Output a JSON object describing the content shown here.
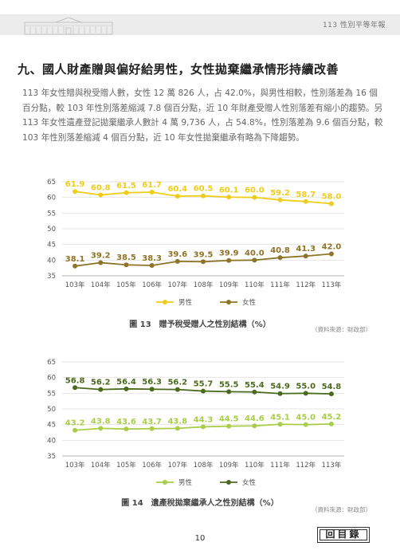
{
  "header": {
    "title": "113 性別平等年報"
  },
  "section": {
    "title": "九、國人財產贈與偏好給男性，女性拋棄繼承情形持續改善"
  },
  "paragraph": "113 年女性贈與稅受贈人數，女性 12 萬 826 人，占 42.0%，與男性相較，性別落差為 16 個百分點，較 103 年性別落差縮減 7.8 個百分點，近 10 年財產受贈人性別落差有縮小的趨勢。另 113 年女性遺產登記拋棄繼承人數計 4 萬 9,736 人，占 54.8%，性別落差為 9.6 個百分點，較 103 年性別落差縮減 4 個百分點，近 10 年女性拋棄繼承有略為下降趨勢。",
  "chart_data": [
    {
      "type": "line",
      "categories": [
        "103年",
        "104年",
        "105年",
        "106年",
        "107年",
        "108年",
        "109年",
        "110年",
        "111年",
        "112年",
        "113年"
      ],
      "yticks": [
        "35",
        "40",
        "45",
        "50",
        "55",
        "60",
        "65"
      ],
      "ylim": [
        35,
        65
      ],
      "grid": true,
      "legend_position": "bottom",
      "series": [
        {
          "name": "男性",
          "color": "#f0cc1a",
          "values": [
            61.9,
            60.8,
            61.5,
            61.7,
            60.4,
            60.5,
            60.1,
            60.0,
            59.2,
            58.7,
            58.0
          ],
          "labels": [
            "61.9",
            "60.8",
            "61.5",
            "61.7",
            "60.4",
            "60.5",
            "60.1",
            "60.0",
            "59.2",
            "58.7",
            "58.0"
          ]
        },
        {
          "name": "女性",
          "color": "#8e7426",
          "values": [
            38.1,
            39.2,
            38.5,
            38.3,
            39.6,
            39.5,
            39.9,
            40.0,
            40.8,
            41.3,
            42.0
          ],
          "labels": [
            "38.1",
            "39.2",
            "38.5",
            "38.3",
            "39.6",
            "39.5",
            "39.9",
            "40.0",
            "40.8",
            "41.3",
            "42.0"
          ]
        }
      ],
      "caption": "圖 13　贈予稅受贈人之性別結構（%）",
      "source": "（資料來源：財政部）"
    },
    {
      "type": "line",
      "categories": [
        "103年",
        "104年",
        "105年",
        "106年",
        "107年",
        "108年",
        "109年",
        "110年",
        "111年",
        "112年",
        "113年"
      ],
      "yticks": [
        "35",
        "40",
        "45",
        "50",
        "55",
        "60",
        "65"
      ],
      "ylim": [
        35,
        65
      ],
      "grid": true,
      "legend_position": "bottom",
      "series": [
        {
          "name": "男性",
          "color": "#a9cd48",
          "values": [
            43.2,
            43.8,
            43.6,
            43.7,
            43.8,
            44.3,
            44.5,
            44.6,
            45.1,
            45.0,
            45.2
          ],
          "labels": [
            "43.2",
            "43.8",
            "43.6",
            "43.7",
            "43.8",
            "44.3",
            "44.5",
            "44.6",
            "45.1",
            "45.0",
            "45.2"
          ]
        },
        {
          "name": "女性",
          "color": "#4c6a1e",
          "values": [
            56.8,
            56.2,
            56.4,
            56.3,
            56.2,
            55.7,
            55.5,
            55.4,
            54.9,
            55.0,
            54.8
          ],
          "labels": [
            "56.8",
            "56.2",
            "56.4",
            "56.3",
            "56.2",
            "55.7",
            "55.5",
            "55.4",
            "54.9",
            "55.0",
            "54.8"
          ]
        }
      ],
      "caption": "圖 14　遺產稅拋棄繼承人之性別結構（%）",
      "source": "（資料來源：財政部）"
    }
  ],
  "footer": {
    "page_number": "10",
    "toc_label": "回目錄"
  }
}
